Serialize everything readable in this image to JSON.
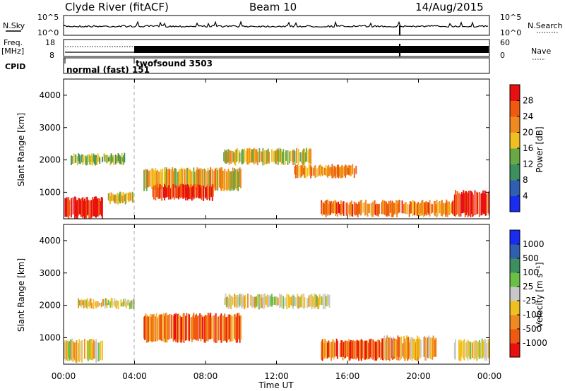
{
  "header": {
    "station": "Clyde River (fitACF)",
    "beam": "Beam 10",
    "date": "14/Aug/2015"
  },
  "summary_panels": {
    "nsky_label": "N.Sky",
    "nsearch_label": "N.Search",
    "nsky_ticks": [
      "10^5",
      "10^0"
    ],
    "nsearch_ticks": [
      "10^5",
      "10^0"
    ],
    "freq_label": "Freq.",
    "freq_unit": "[MHz]",
    "freq_ticks": [
      "18",
      "8"
    ],
    "nave_label": "Nave",
    "nave_ticks": [
      "60",
      "0"
    ],
    "cpid_label": "CPID",
    "cpid_segments": [
      {
        "label": "normal (fast) 151",
        "start_hour": 0,
        "end_hour": 4
      },
      {
        "label": "twofsound 3503",
        "start_hour": 4,
        "end_hour": 24
      }
    ]
  },
  "colors": {
    "power_scale": [
      "#1a2cf0",
      "#2f5fb0",
      "#3d8f5f",
      "#69a845",
      "#f0c020",
      "#f08a20",
      "#f05a10",
      "#e81010"
    ],
    "velocity_scale": [
      "#e81010",
      "#f05a10",
      "#f08a20",
      "#f0c020",
      "#c8c8c8",
      "#69c045",
      "#3d8f5f",
      "#2f5fb0",
      "#1a2cf0"
    ],
    "ground_scatter": "#c8c8c8"
  },
  "chart_data": [
    {
      "type": "heatmap",
      "name": "power",
      "x_hours": [
        0,
        24
      ],
      "xlim": [
        0,
        24
      ],
      "ylim": [
        180,
        4500
      ],
      "ylabel": "Slant Range [km]",
      "yticks": [
        1000,
        2000,
        3000,
        4000
      ],
      "colorbar_label": "Power [dB]",
      "colorbar_ticks": [
        "4",
        "8",
        "12",
        "16",
        "20",
        "24",
        "28"
      ],
      "bands": [
        {
          "t0": 0.0,
          "t1": 2.2,
          "r0": 250,
          "r1": 800,
          "level": 0.95
        },
        {
          "t0": 0.4,
          "t1": 3.5,
          "r0": 1900,
          "r1": 2150,
          "level": 0.45
        },
        {
          "t0": 2.5,
          "t1": 4.0,
          "r0": 700,
          "r1": 950,
          "level": 0.55
        },
        {
          "t0": 4.5,
          "t1": 10.0,
          "r0": 1100,
          "r1": 1700,
          "level": 0.6
        },
        {
          "t0": 5.0,
          "t1": 8.5,
          "r0": 800,
          "r1": 1200,
          "level": 0.9
        },
        {
          "t0": 9.0,
          "t1": 14.0,
          "r0": 1900,
          "r1": 2300,
          "level": 0.55
        },
        {
          "t0": 13.0,
          "t1": 16.5,
          "r0": 1500,
          "r1": 1800,
          "level": 0.7
        },
        {
          "t0": 14.5,
          "t1": 22.0,
          "r0": 300,
          "r1": 700,
          "level": 0.75
        },
        {
          "t0": 22.0,
          "t1": 24.0,
          "r0": 300,
          "r1": 1000,
          "level": 0.95
        }
      ]
    },
    {
      "type": "heatmap",
      "name": "velocity",
      "x_hours": [
        0,
        24
      ],
      "xlim": [
        0,
        24
      ],
      "ylim": [
        180,
        4500
      ],
      "ylabel": "Slant Range [km]",
      "yticks": [
        1000,
        2000,
        3000,
        4000
      ],
      "xlabel": "Time UT",
      "xticks": [
        "00:00",
        "04:00",
        "08:00",
        "12:00",
        "16:00",
        "20:00",
        "00:00"
      ],
      "colorbar_label": "Velocity [m s⁻¹]",
      "colorbar_ticks": [
        "-1000",
        "-500",
        "-100",
        "-25",
        "25",
        "100",
        "500",
        "1000"
      ],
      "bands": [
        {
          "t0": 0.0,
          "t1": 2.2,
          "r0": 300,
          "r1": 900,
          "level": 0.45
        },
        {
          "t0": 0.8,
          "t1": 4.0,
          "r0": 1950,
          "r1": 2150,
          "level": 0.45
        },
        {
          "t0": 4.5,
          "t1": 10.0,
          "r0": 900,
          "r1": 1700,
          "level": 0.2
        },
        {
          "t0": 9.0,
          "t1": 15.0,
          "r0": 1950,
          "r1": 2300,
          "level": 0.45
        },
        {
          "t0": 14.5,
          "t1": 20.0,
          "r0": 350,
          "r1": 900,
          "level": 0.2
        },
        {
          "t0": 18.0,
          "t1": 21.0,
          "r0": 350,
          "r1": 1000,
          "level": 0.35
        },
        {
          "t0": 22.0,
          "t1": 24.0,
          "r0": 350,
          "r1": 900,
          "level": 0.45
        }
      ]
    }
  ]
}
